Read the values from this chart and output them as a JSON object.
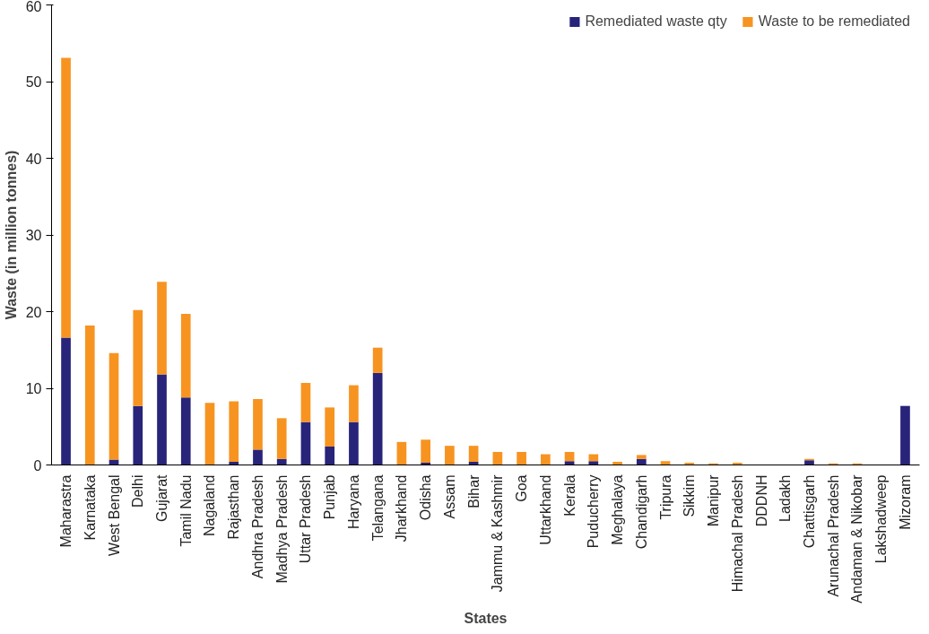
{
  "chart_data": {
    "type": "bar",
    "stacked": true,
    "xlabel": "States",
    "ylabel": "Waste (in million tonnes)",
    "categories": [
      "Maharastra",
      "Karnataka",
      "West Bengal",
      "Delhi",
      "Gujarat",
      "Tamil Nadu",
      "Nagaland",
      "Rajasthan",
      "Andhra Pradesh",
      "Madhya Pradesh",
      "Uttar Pradesh",
      "Punjab",
      "Haryana",
      "Telangana",
      "Jharkhand",
      "Odisha",
      "Assam",
      "Bihar",
      "Jammu & Kashmir",
      "Goa",
      "Uttarkhand",
      "Kerala",
      "Puducherry",
      "Meghalaya",
      "Chandigarh",
      "Tripura",
      "Sikkim",
      "Manipur",
      "Himachal Pradesh",
      "DDDNH",
      "Ladakh",
      "Chattisgarh",
      "Arunachal Pradesh",
      "Andaman & Nikobar",
      "Lakshadweep",
      "Mizoram"
    ],
    "series": [
      {
        "name": "Remediated waste qty",
        "color": "#28247a",
        "values": [
          16.6,
          0,
          0.7,
          7.7,
          11.8,
          8.8,
          0,
          0.4,
          2.0,
          0.8,
          5.6,
          2.4,
          5.6,
          12.0,
          0,
          0.3,
          0,
          0.4,
          0,
          0,
          0,
          0.5,
          0.5,
          0,
          0.8,
          0,
          0,
          0,
          0,
          0,
          0,
          0.6,
          0,
          0,
          0,
          7.7
        ]
      },
      {
        "name": "Waste to be remediated",
        "color": "#f79421",
        "values": [
          36.5,
          18.2,
          13.9,
          12.5,
          12.1,
          10.9,
          8.1,
          7.9,
          6.6,
          5.3,
          5.1,
          5.1,
          4.8,
          3.3,
          3.0,
          3.0,
          2.5,
          2.1,
          1.7,
          1.7,
          1.4,
          1.2,
          0.9,
          0.4,
          0.5,
          0.5,
          0.3,
          0.2,
          0.3,
          0,
          0,
          0.2,
          0.2,
          0.2,
          0,
          0
        ]
      }
    ],
    "ylim": [
      0,
      60
    ],
    "yticks": [
      0,
      10,
      20,
      30,
      40,
      50,
      60
    ],
    "grid": false,
    "legend": "top right"
  }
}
